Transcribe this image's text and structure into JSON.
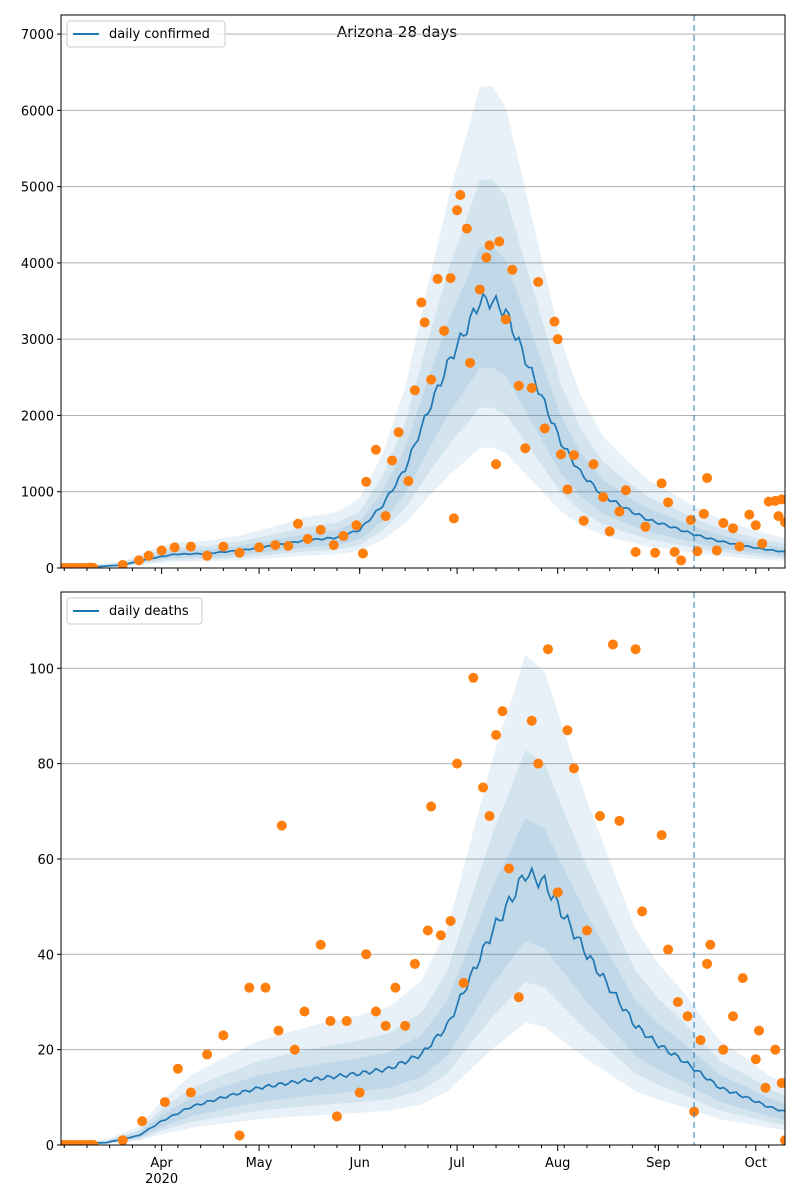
{
  "title": "Arizona 28 days",
  "chart_data": [
    {
      "type": "line",
      "name": "confirmed-panel",
      "title": "Arizona 28 days",
      "legend": {
        "label": "daily confirmed",
        "placement": "top-left"
      },
      "xlim": [
        "2020-03-01",
        "2020-10-10"
      ],
      "ylim": [
        0,
        7250
      ],
      "yticks": [
        0,
        1000,
        2000,
        3000,
        4000,
        5000,
        6000,
        7000
      ],
      "grid": "horizontal",
      "forecast_start": "2020-09-12",
      "colors": {
        "line": "#1f77b4",
        "points": "#ff7f0e",
        "band": "#1f77b4"
      },
      "model_curve": [
        [
          "2020-03-01",
          5
        ],
        [
          "2020-03-10",
          10
        ],
        [
          "2020-03-20",
          40
        ],
        [
          "2020-03-28",
          120
        ],
        [
          "2020-04-05",
          180
        ],
        [
          "2020-04-15",
          190
        ],
        [
          "2020-04-25",
          230
        ],
        [
          "2020-05-05",
          290
        ],
        [
          "2020-05-15",
          360
        ],
        [
          "2020-05-25",
          400
        ],
        [
          "2020-06-01",
          500
        ],
        [
          "2020-06-08",
          820
        ],
        [
          "2020-06-15",
          1300
        ],
        [
          "2020-06-22",
          2050
        ],
        [
          "2020-06-29",
          2750
        ],
        [
          "2020-07-04",
          3150
        ],
        [
          "2020-07-08",
          3500
        ],
        [
          "2020-07-12",
          3500
        ],
        [
          "2020-07-16",
          3350
        ],
        [
          "2020-07-21",
          2850
        ],
        [
          "2020-07-27",
          2250
        ],
        [
          "2020-08-02",
          1650
        ],
        [
          "2020-08-08",
          1250
        ],
        [
          "2020-08-15",
          950
        ],
        [
          "2020-08-22",
          780
        ],
        [
          "2020-08-29",
          630
        ],
        [
          "2020-09-05",
          540
        ],
        [
          "2020-09-12",
          440
        ],
        [
          "2020-09-19",
          360
        ],
        [
          "2020-09-26",
          300
        ],
        [
          "2020-10-03",
          250
        ],
        [
          "2020-10-10",
          210
        ]
      ],
      "points": [
        [
          "2020-03-10",
          5
        ],
        [
          "2020-03-20",
          40
        ],
        [
          "2020-03-25",
          100
        ],
        [
          "2020-03-28",
          160
        ],
        [
          "2020-04-01",
          230
        ],
        [
          "2020-04-05",
          270
        ],
        [
          "2020-04-10",
          280
        ],
        [
          "2020-04-15",
          160
        ],
        [
          "2020-04-20",
          280
        ],
        [
          "2020-04-25",
          200
        ],
        [
          "2020-05-01",
          270
        ],
        [
          "2020-05-06",
          300
        ],
        [
          "2020-05-10",
          290
        ],
        [
          "2020-05-13",
          580
        ],
        [
          "2020-05-16",
          380
        ],
        [
          "2020-05-20",
          500
        ],
        [
          "2020-05-24",
          300
        ],
        [
          "2020-05-27",
          420
        ],
        [
          "2020-05-31",
          560
        ],
        [
          "2020-06-02",
          190
        ],
        [
          "2020-06-03",
          1130
        ],
        [
          "2020-06-06",
          1550
        ],
        [
          "2020-06-09",
          680
        ],
        [
          "2020-06-11",
          1410
        ],
        [
          "2020-06-13",
          1780
        ],
        [
          "2020-06-16",
          1140
        ],
        [
          "2020-06-18",
          2330
        ],
        [
          "2020-06-20",
          3480
        ],
        [
          "2020-06-21",
          3220
        ],
        [
          "2020-06-23",
          2470
        ],
        [
          "2020-06-25",
          3790
        ],
        [
          "2020-06-27",
          3110
        ],
        [
          "2020-06-29",
          3800
        ],
        [
          "2020-06-30",
          650
        ],
        [
          "2020-07-01",
          4690
        ],
        [
          "2020-07-02",
          4890
        ],
        [
          "2020-07-04",
          4450
        ],
        [
          "2020-07-05",
          2690
        ],
        [
          "2020-07-08",
          3650
        ],
        [
          "2020-07-10",
          4070
        ],
        [
          "2020-07-11",
          4230
        ],
        [
          "2020-07-13",
          1360
        ],
        [
          "2020-07-14",
          4280
        ],
        [
          "2020-07-16",
          3260
        ],
        [
          "2020-07-18",
          3910
        ],
        [
          "2020-07-20",
          2390
        ],
        [
          "2020-07-22",
          1570
        ],
        [
          "2020-07-24",
          2360
        ],
        [
          "2020-07-26",
          3750
        ],
        [
          "2020-07-28",
          1830
        ],
        [
          "2020-07-31",
          3230
        ],
        [
          "2020-08-01",
          3000
        ],
        [
          "2020-08-02",
          1490
        ],
        [
          "2020-08-04",
          1030
        ],
        [
          "2020-08-06",
          1480
        ],
        [
          "2020-08-09",
          620
        ],
        [
          "2020-08-12",
          1360
        ],
        [
          "2020-08-15",
          930
        ],
        [
          "2020-08-17",
          480
        ],
        [
          "2020-08-20",
          740
        ],
        [
          "2020-08-22",
          1020
        ],
        [
          "2020-08-25",
          210
        ],
        [
          "2020-08-28",
          540
        ],
        [
          "2020-08-31",
          200
        ],
        [
          "2020-09-02",
          1110
        ],
        [
          "2020-09-04",
          860
        ],
        [
          "2020-09-06",
          210
        ],
        [
          "2020-09-08",
          100
        ],
        [
          "2020-09-11",
          630
        ],
        [
          "2020-09-13",
          220
        ],
        [
          "2020-09-15",
          710
        ],
        [
          "2020-09-16",
          1180
        ],
        [
          "2020-09-19",
          230
        ],
        [
          "2020-09-21",
          590
        ],
        [
          "2020-09-24",
          520
        ],
        [
          "2020-09-26",
          280
        ],
        [
          "2020-09-29",
          700
        ],
        [
          "2020-10-01",
          560
        ],
        [
          "2020-10-03",
          320
        ],
        [
          "2020-10-05",
          870
        ],
        [
          "2020-10-07",
          880
        ],
        [
          "2020-10-08",
          680
        ],
        [
          "2020-10-09",
          900
        ],
        [
          "2020-10-10",
          600
        ]
      ]
    },
    {
      "type": "line",
      "name": "deaths-panel",
      "legend": {
        "label": "daily deaths",
        "placement": "top-left"
      },
      "xlim": [
        "2020-03-01",
        "2020-10-10"
      ],
      "xticks": [
        {
          "date": "2020-04-01",
          "label": "Apr",
          "sublabel": "2020"
        },
        {
          "date": "2020-05-01",
          "label": "May"
        },
        {
          "date": "2020-06-01",
          "label": "Jun"
        },
        {
          "date": "2020-07-01",
          "label": "Jul"
        },
        {
          "date": "2020-08-01",
          "label": "Aug"
        },
        {
          "date": "2020-09-01",
          "label": "Sep"
        },
        {
          "date": "2020-10-01",
          "label": "Oct"
        }
      ],
      "ylim": [
        0,
        116
      ],
      "yticks": [
        0,
        20,
        40,
        60,
        80,
        100
      ],
      "grid": "horizontal",
      "forecast_start": "2020-09-12",
      "colors": {
        "line": "#1f77b4",
        "points": "#ff7f0e",
        "band": "#1f77b4"
      },
      "model_curve": [
        [
          "2020-03-01",
          0
        ],
        [
          "2020-03-15",
          0.5
        ],
        [
          "2020-03-25",
          2
        ],
        [
          "2020-04-01",
          5
        ],
        [
          "2020-04-10",
          8
        ],
        [
          "2020-04-20",
          10
        ],
        [
          "2020-05-01",
          12
        ],
        [
          "2020-05-10",
          13
        ],
        [
          "2020-05-20",
          14
        ],
        [
          "2020-06-01",
          15
        ],
        [
          "2020-06-10",
          16
        ],
        [
          "2020-06-20",
          19
        ],
        [
          "2020-06-28",
          25
        ],
        [
          "2020-07-05",
          35
        ],
        [
          "2020-07-12",
          45
        ],
        [
          "2020-07-18",
          52
        ],
        [
          "2020-07-22",
          57
        ],
        [
          "2020-07-28",
          55
        ],
        [
          "2020-08-03",
          48
        ],
        [
          "2020-08-10",
          40
        ],
        [
          "2020-08-18",
          32
        ],
        [
          "2020-08-25",
          25
        ],
        [
          "2020-09-01",
          21
        ],
        [
          "2020-09-08",
          18
        ],
        [
          "2020-09-12",
          16
        ],
        [
          "2020-09-20",
          12
        ],
        [
          "2020-09-28",
          10
        ],
        [
          "2020-10-05",
          8
        ],
        [
          "2020-10-10",
          7
        ]
      ],
      "points": [
        [
          "2020-03-10",
          0
        ],
        [
          "2020-03-20",
          1
        ],
        [
          "2020-03-26",
          5
        ],
        [
          "2020-04-02",
          9
        ],
        [
          "2020-04-06",
          16
        ],
        [
          "2020-04-10",
          11
        ],
        [
          "2020-04-15",
          19
        ],
        [
          "2020-04-20",
          23
        ],
        [
          "2020-04-25",
          2
        ],
        [
          "2020-04-28",
          33
        ],
        [
          "2020-05-03",
          33
        ],
        [
          "2020-05-07",
          24
        ],
        [
          "2020-05-08",
          67
        ],
        [
          "2020-05-12",
          20
        ],
        [
          "2020-05-15",
          28
        ],
        [
          "2020-05-20",
          42
        ],
        [
          "2020-05-23",
          26
        ],
        [
          "2020-05-25",
          6
        ],
        [
          "2020-05-28",
          26
        ],
        [
          "2020-06-01",
          11
        ],
        [
          "2020-06-03",
          40
        ],
        [
          "2020-06-06",
          28
        ],
        [
          "2020-06-09",
          25
        ],
        [
          "2020-06-12",
          33
        ],
        [
          "2020-06-15",
          25
        ],
        [
          "2020-06-18",
          38
        ],
        [
          "2020-06-22",
          45
        ],
        [
          "2020-06-23",
          71
        ],
        [
          "2020-06-26",
          44
        ],
        [
          "2020-06-29",
          47
        ],
        [
          "2020-07-01",
          80
        ],
        [
          "2020-07-03",
          34
        ],
        [
          "2020-07-06",
          98
        ],
        [
          "2020-07-09",
          75
        ],
        [
          "2020-07-11",
          69
        ],
        [
          "2020-07-13",
          86
        ],
        [
          "2020-07-15",
          91
        ],
        [
          "2020-07-17",
          58
        ],
        [
          "2020-07-20",
          31
        ],
        [
          "2020-07-24",
          89
        ],
        [
          "2020-07-26",
          80
        ],
        [
          "2020-07-29",
          104
        ],
        [
          "2020-08-01",
          53
        ],
        [
          "2020-08-04",
          87
        ],
        [
          "2020-08-06",
          79
        ],
        [
          "2020-08-10",
          45
        ],
        [
          "2020-08-14",
          69
        ],
        [
          "2020-08-18",
          105
        ],
        [
          "2020-08-20",
          68
        ],
        [
          "2020-08-25",
          104
        ],
        [
          "2020-08-27",
          49
        ],
        [
          "2020-09-02",
          65
        ],
        [
          "2020-09-04",
          41
        ],
        [
          "2020-09-07",
          30
        ],
        [
          "2020-09-10",
          27
        ],
        [
          "2020-09-12",
          7
        ],
        [
          "2020-09-14",
          22
        ],
        [
          "2020-09-16",
          38
        ],
        [
          "2020-09-17",
          42
        ],
        [
          "2020-09-21",
          20
        ],
        [
          "2020-09-24",
          27
        ],
        [
          "2020-09-27",
          35
        ],
        [
          "2020-10-01",
          18
        ],
        [
          "2020-10-02",
          24
        ],
        [
          "2020-10-04",
          12
        ],
        [
          "2020-10-07",
          20
        ],
        [
          "2020-10-09",
          13
        ],
        [
          "2020-10-10",
          1
        ]
      ]
    }
  ]
}
